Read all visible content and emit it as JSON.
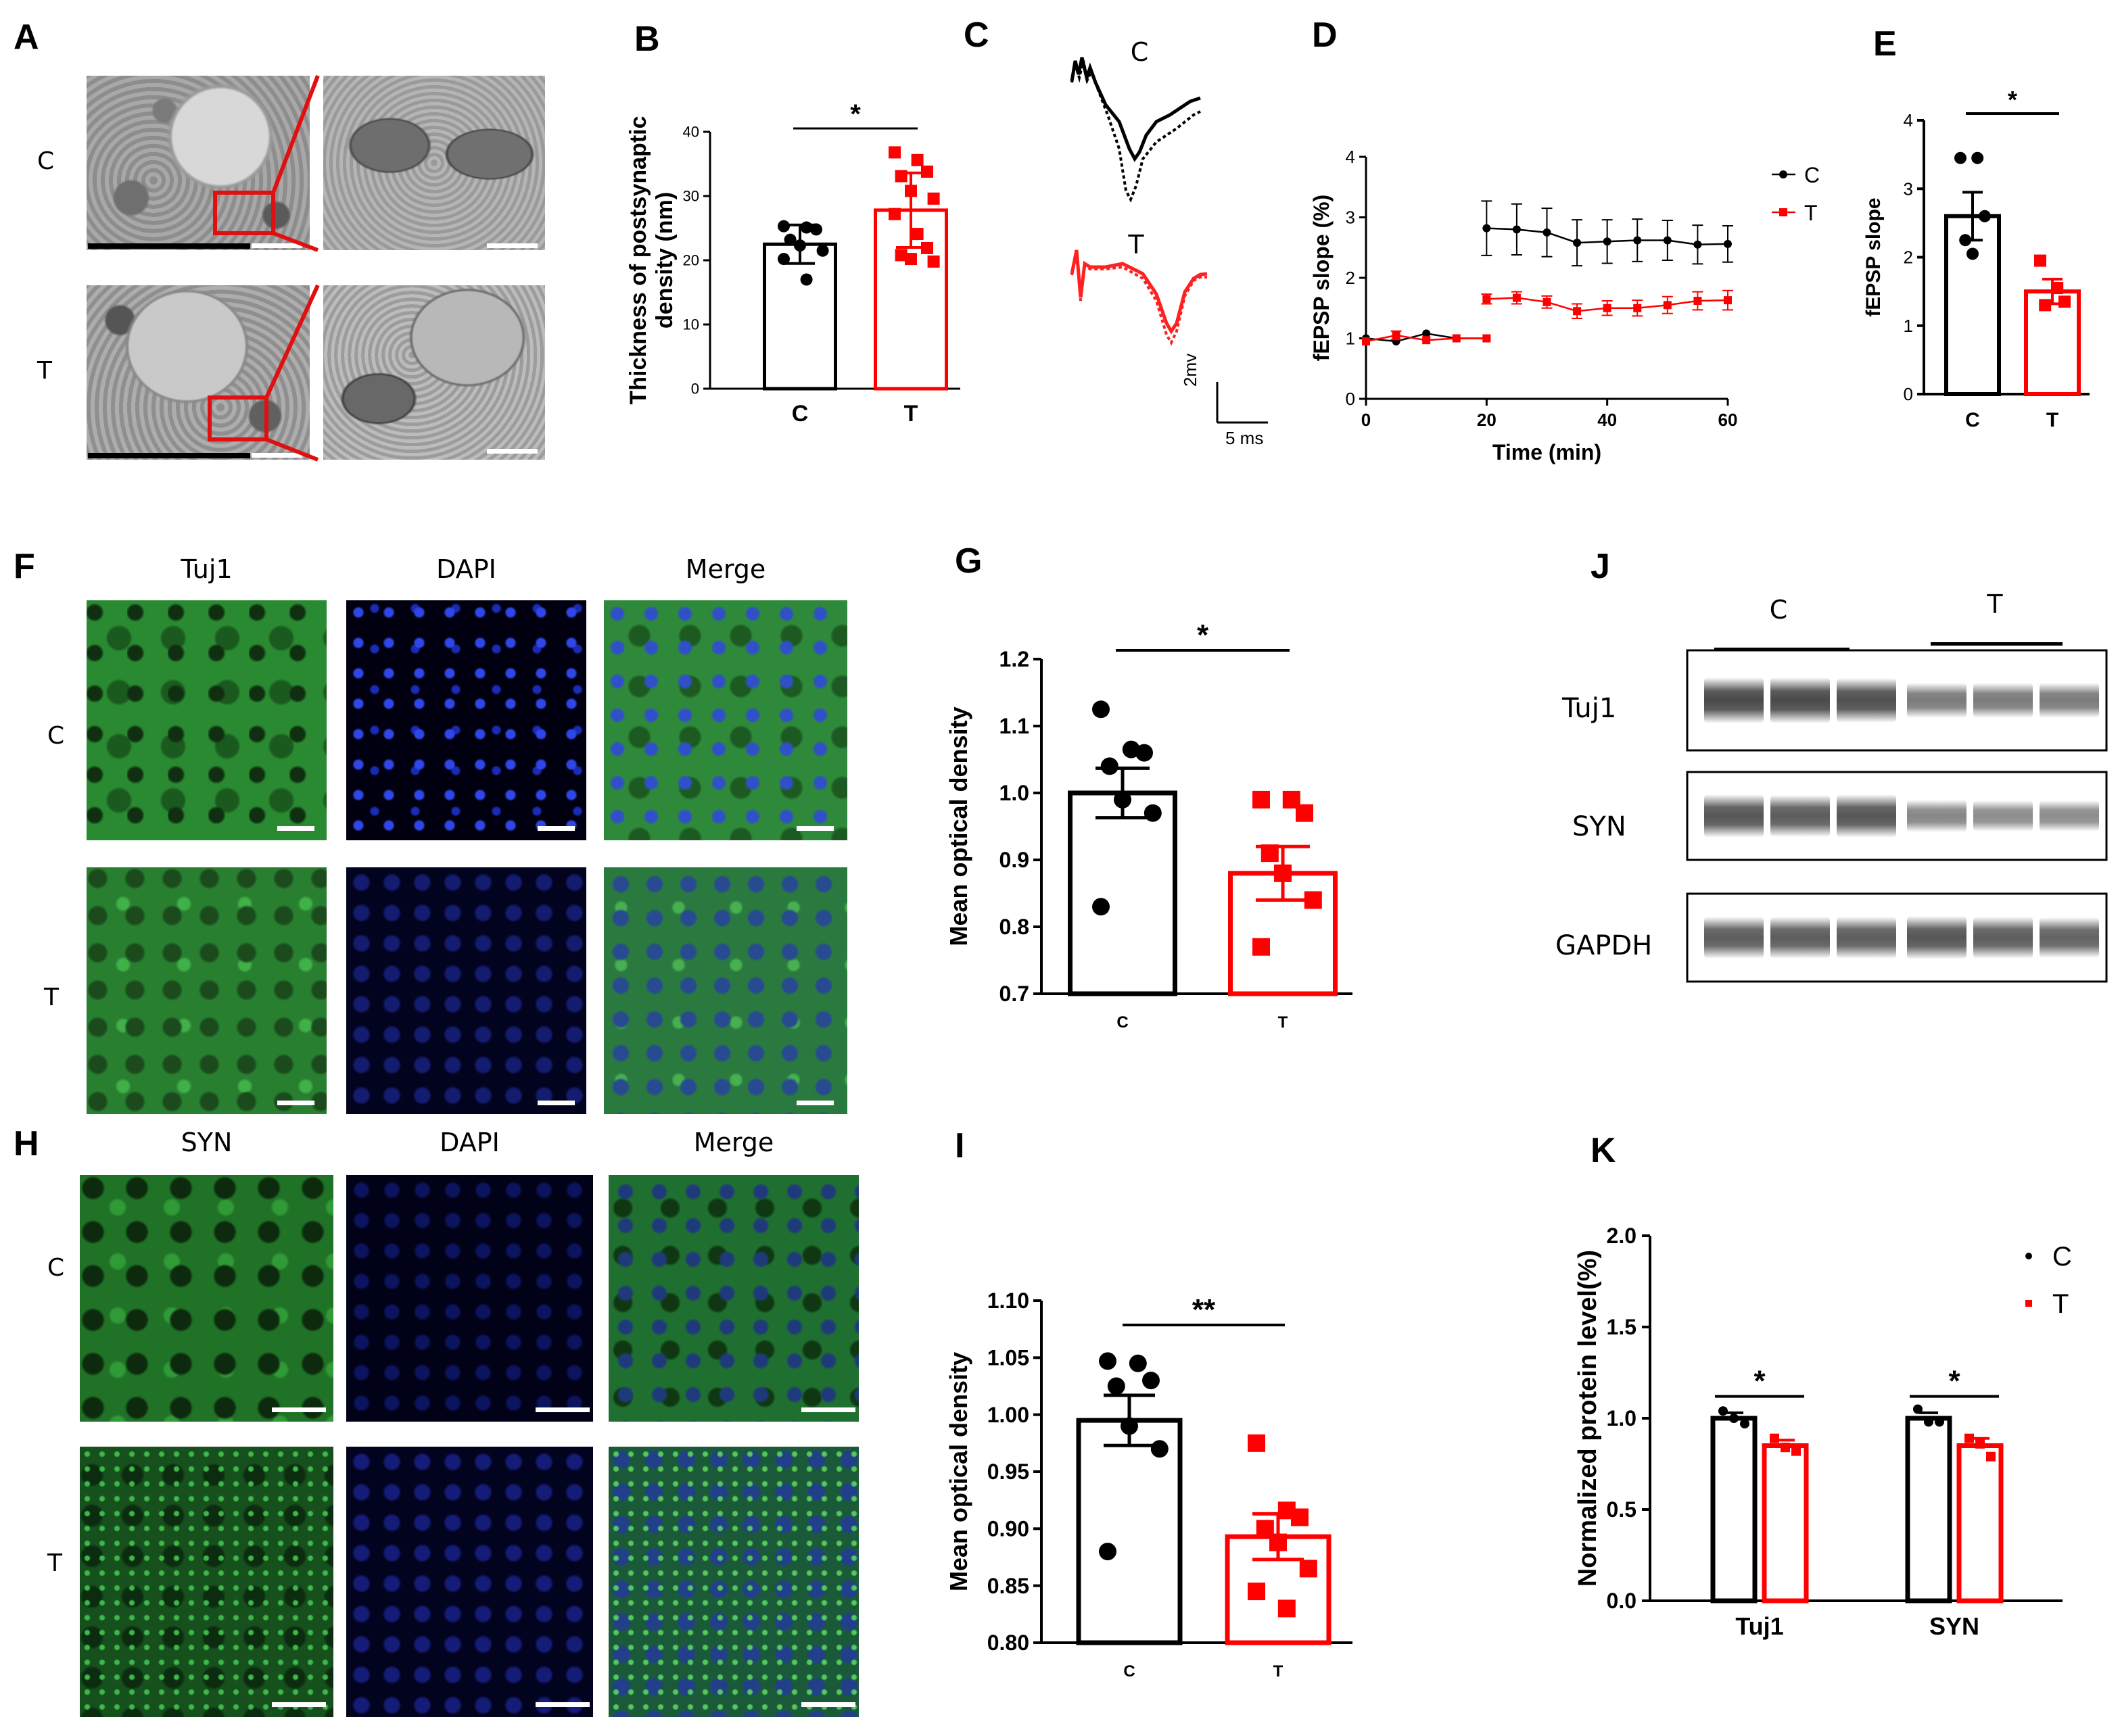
{
  "panel_letters": [
    "A",
    "B",
    "C",
    "D",
    "E",
    "F",
    "G",
    "H",
    "I",
    "J",
    "K"
  ],
  "groups": {
    "control": "C",
    "treated": "T"
  },
  "colors": {
    "control": "#000000",
    "treated": "#ff0000"
  },
  "panelA": {
    "rows": [
      "C",
      "T"
    ]
  },
  "panelC": {
    "label_c": "C",
    "label_t": "T",
    "scale_y": "2mv",
    "scale_x": "5 ms"
  },
  "panelF": {
    "cols": [
      "Tuj1",
      "DAPI",
      "Merge"
    ],
    "rows": [
      "C",
      "T"
    ]
  },
  "panelH": {
    "cols": [
      "SYN",
      "DAPI",
      "Merge"
    ],
    "rows": [
      "C",
      "T"
    ]
  },
  "panelJ": {
    "groups": [
      "C",
      "T"
    ],
    "rows": [
      "Tuj1",
      "SYN",
      "GAPDH"
    ]
  },
  "chart_data": [
    {
      "id": "B",
      "type": "bar",
      "ylabel": "Thickness of postsynaptic density (nm)",
      "ylabel_line1": "Thickness of postsynaptic",
      "ylabel_line2": "density (nm)",
      "categories": [
        "C",
        "T"
      ],
      "yticks": [
        "0",
        "10",
        "20",
        "30",
        "40"
      ],
      "ylim": [
        0,
        40
      ],
      "values": [
        22.5,
        27.8
      ],
      "errors": [
        3.0,
        5.8
      ],
      "points": [
        [
          25.3,
          25.1,
          24.8,
          23.2,
          22.3,
          21.5,
          20.2,
          17.0
        ],
        [
          36.8,
          35.6,
          33.8,
          33.1,
          30.8,
          29.6,
          27.2,
          24.1,
          21.9,
          20.8,
          20.2,
          19.8
        ]
      ],
      "sig": "*"
    },
    {
      "id": "D",
      "type": "line",
      "ylabel": "fEPSP slope (%)",
      "xlabel": "Time (min)",
      "xticks": [
        "0",
        "20",
        "40",
        "60"
      ],
      "yticks": [
        "0",
        "1",
        "2",
        "3",
        "4"
      ],
      "xlim": [
        0,
        60
      ],
      "ylim": [
        0,
        4
      ],
      "series": [
        {
          "name": "C",
          "x": [
            0,
            5,
            10,
            15,
            20,
            20,
            25,
            30,
            35,
            40,
            45,
            50,
            55,
            60
          ],
          "y": [
            1.0,
            0.95,
            1.08,
            1.0,
            1.0,
            2.82,
            2.8,
            2.75,
            2.58,
            2.6,
            2.62,
            2.62,
            2.55,
            2.56
          ],
          "err": [
            0,
            0,
            0,
            0,
            0,
            0.45,
            0.42,
            0.4,
            0.38,
            0.36,
            0.35,
            0.33,
            0.32,
            0.3
          ]
        },
        {
          "name": "T",
          "x": [
            0,
            5,
            10,
            15,
            20,
            20,
            25,
            30,
            35,
            40,
            45,
            50,
            55,
            60
          ],
          "y": [
            0.95,
            1.05,
            0.97,
            1.0,
            1.0,
            1.65,
            1.67,
            1.6,
            1.45,
            1.5,
            1.5,
            1.55,
            1.62,
            1.63
          ],
          "err": [
            0,
            0.07,
            0,
            0,
            0,
            0.08,
            0.1,
            0.1,
            0.12,
            0.12,
            0.13,
            0.14,
            0.15,
            0.16
          ]
        }
      ]
    },
    {
      "id": "E",
      "type": "bar",
      "ylabel": "fEPSP slope",
      "categories": [
        "C",
        "T"
      ],
      "yticks": [
        "0",
        "1",
        "2",
        "3",
        "4"
      ],
      "ylim": [
        0,
        4
      ],
      "values": [
        2.6,
        1.5
      ],
      "errors": [
        0.35,
        0.18
      ],
      "points": [
        [
          3.45,
          3.45,
          2.6,
          2.25,
          2.05
        ],
        [
          1.95,
          1.55,
          1.35,
          1.3
        ]
      ],
      "sig": "*"
    },
    {
      "id": "G",
      "type": "bar",
      "ylabel": "Mean optical density",
      "categories": [
        "C",
        "T"
      ],
      "yticks": [
        "0.7",
        "0.8",
        "0.9",
        "1.0",
        "1.1",
        "1.2"
      ],
      "ylim": [
        0.7,
        1.2
      ],
      "values": [
        1.0,
        0.88
      ],
      "errors": [
        0.037,
        0.04
      ],
      "points": [
        [
          1.125,
          1.065,
          1.06,
          1.04,
          0.99,
          0.97,
          0.83
        ],
        [
          0.99,
          0.99,
          0.97,
          0.91,
          0.88,
          0.84,
          0.77
        ]
      ],
      "sig": "*"
    },
    {
      "id": "I",
      "type": "bar",
      "ylabel": "Mean optical density",
      "categories": [
        "C",
        "T"
      ],
      "yticks": [
        "0.80",
        "0.85",
        "0.90",
        "0.95",
        "1.00",
        "1.05",
        "1.10"
      ],
      "ylim": [
        0.8,
        1.1
      ],
      "values": [
        0.995,
        0.893
      ],
      "errors": [
        0.022,
        0.02
      ],
      "points": [
        [
          1.047,
          1.045,
          1.03,
          1.025,
          0.99,
          0.97,
          0.88
        ],
        [
          0.975,
          0.916,
          0.91,
          0.9,
          0.888,
          0.865,
          0.845,
          0.83
        ]
      ],
      "sig": "**"
    },
    {
      "id": "K",
      "type": "bar",
      "ylabel": "Normalized protein level(%)",
      "categories": [
        "Tuj1",
        "SYN"
      ],
      "yticks": [
        "0.0",
        "0.5",
        "1.0",
        "1.5",
        "2.0"
      ],
      "ylim": [
        0,
        2
      ],
      "legend_position": "top-right",
      "series": [
        {
          "name": "C",
          "values": [
            1.0,
            1.0
          ],
          "errors": [
            0.03,
            0.03
          ],
          "points": [
            [
              1.04,
              1.0,
              0.97
            ],
            [
              1.05,
              0.98,
              0.98
            ]
          ]
        },
        {
          "name": "T",
          "values": [
            0.85,
            0.85
          ],
          "errors": [
            0.03,
            0.04
          ],
          "points": [
            [
              0.89,
              0.84,
              0.82
            ],
            [
              0.89,
              0.86,
              0.79
            ]
          ]
        }
      ],
      "sig": [
        "*",
        "*"
      ]
    }
  ]
}
